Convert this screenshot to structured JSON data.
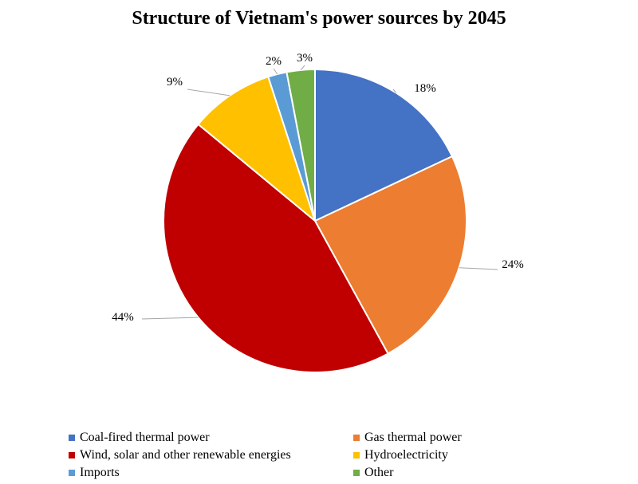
{
  "chart_data": {
    "type": "pie",
    "title": "Structure of Vietnam's power sources by 2045",
    "series": [
      {
        "name": "Coal-fired thermal power",
        "value": 18,
        "label": "18%",
        "color": "#4472C4"
      },
      {
        "name": "Gas thermal power",
        "value": 24,
        "label": "24%",
        "color": "#ED7D31"
      },
      {
        "name": "Wind, solar and other renewable energies",
        "value": 44,
        "label": "44%",
        "color": "#C00000"
      },
      {
        "name": "Hydroelectricity",
        "value": 9,
        "label": "9%",
        "color": "#FFC000"
      },
      {
        "name": "Imports",
        "value": 2,
        "label": "2%",
        "color": "#5B9BD5"
      },
      {
        "name": "Other",
        "value": 3,
        "label": "3%",
        "color": "#70AD47"
      }
    ],
    "legend_position": "bottom"
  }
}
